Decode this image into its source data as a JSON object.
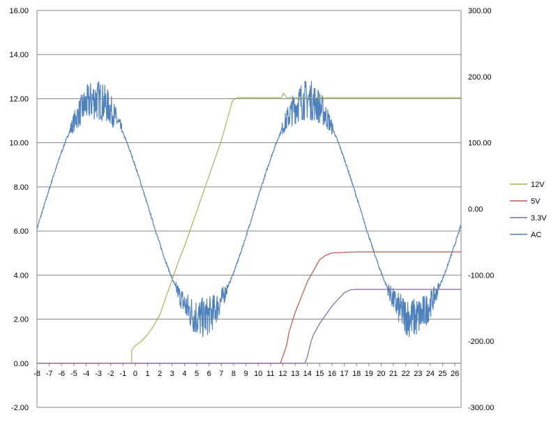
{
  "chart_data": {
    "type": "line",
    "title": "",
    "xlabel": "",
    "ylabel": "",
    "y2label": "",
    "x_ticks": [
      "-8",
      "-7",
      "-6",
      "-5",
      "-4",
      "-3",
      "-2",
      "-1",
      "0",
      "1",
      "2",
      "3",
      "4",
      "5",
      "6",
      "7",
      "8",
      "9",
      "10",
      "11",
      "12",
      "13",
      "14",
      "15",
      "16",
      "17",
      "18",
      "19",
      "20",
      "21",
      "22",
      "23",
      "24",
      "25",
      "26"
    ],
    "y_ticks": [
      "-2.00",
      "0.00",
      "2.00",
      "4.00",
      "6.00",
      "8.00",
      "10.00",
      "12.00",
      "14.00",
      "16.00"
    ],
    "y2_ticks": [
      "-300.00",
      "-200.00",
      "-100.00",
      "0.00",
      "100.00",
      "200.00",
      "300.00"
    ],
    "xlim": [
      -8,
      26.5
    ],
    "ylim": [
      -2,
      16
    ],
    "y2lim": [
      -300,
      300
    ],
    "grid": "horizontal",
    "legend_position": "right",
    "series": [
      {
        "name": "12V",
        "axis": "left",
        "color": "#9BBB59",
        "x": [
          -8,
          -0.3,
          -0.29,
          0,
          0.5,
          1,
          1.5,
          2,
          2.5,
          3,
          3.5,
          4,
          5,
          6,
          7,
          7.9,
          8.3,
          8.5,
          10,
          11,
          11.9,
          12.05,
          12.3,
          13,
          15,
          20,
          26.5
        ],
        "y": [
          0,
          0,
          0.6,
          0.8,
          1.0,
          1.3,
          1.7,
          2.2,
          3.0,
          3.8,
          4.6,
          5.3,
          6.9,
          8.5,
          10.1,
          11.9,
          12.05,
          12.05,
          12.05,
          12.05,
          12.05,
          12.25,
          12.05,
          12.05,
          12.05,
          12.05,
          12.05
        ]
      },
      {
        "name": "5V",
        "axis": "left",
        "color": "#C0504D",
        "x": [
          -8,
          11.8,
          12,
          12.3,
          12.5,
          13,
          14,
          15,
          15.5,
          16,
          17,
          18,
          20,
          26.5
        ],
        "y": [
          0,
          0,
          0.3,
          0.8,
          1.4,
          2.3,
          3.7,
          4.7,
          4.9,
          5.0,
          5.03,
          5.05,
          5.05,
          5.05
        ]
      },
      {
        "name": "3.3V",
        "axis": "left",
        "color": "#8064A2",
        "x": [
          -8,
          13.8,
          14,
          14.3,
          14.5,
          15,
          16,
          17,
          17.5,
          18,
          20,
          26.5
        ],
        "y": [
          0,
          0,
          0.3,
          1.0,
          1.3,
          1.8,
          2.6,
          3.2,
          3.33,
          3.35,
          3.35,
          3.35
        ]
      },
      {
        "name": "AC",
        "axis": "right",
        "color": "#4F81BD",
        "amplitude": 165,
        "period": 17.2,
        "phase_x": -3.2,
        "noise_band": 22
      }
    ]
  },
  "legend": {
    "items": [
      "12V",
      "5V",
      "3.3V",
      "AC"
    ]
  }
}
